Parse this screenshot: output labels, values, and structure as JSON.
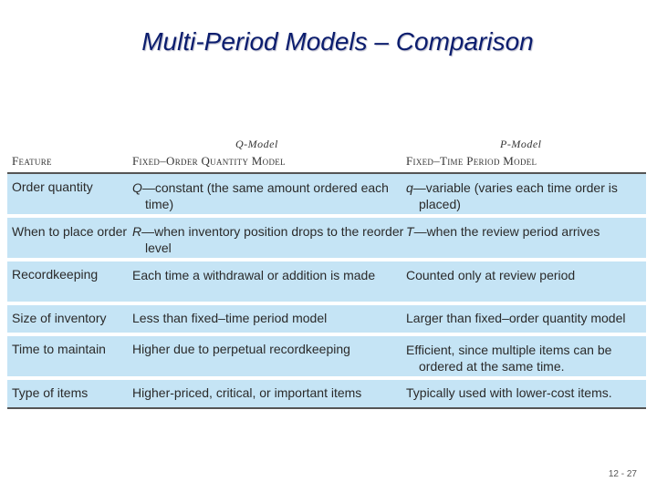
{
  "title": "Multi-Period Models – Comparison",
  "table": {
    "q_model_heading": "Q-Model",
    "p_model_heading": "P-Model",
    "columns": [
      "Feature",
      "Fixed–Order Quantity Model",
      "Fixed–Time Period Model"
    ],
    "rows": [
      {
        "feature": "Order quantity",
        "q_sym": "Q",
        "q_text": "—constant (the same amount ordered each time)",
        "p_sym": "q",
        "p_text": "—variable (varies each time order is placed)"
      },
      {
        "feature": "When to place order",
        "q_sym": "R",
        "q_text": "—when inventory position drops to the reorder level",
        "p_sym": "T",
        "p_text": "—when the review period arrives"
      },
      {
        "feature": "Recordkeeping",
        "q_sym": "",
        "q_text": "Each time a withdrawal or addition is made",
        "p_sym": "",
        "p_text": "Counted only at review period"
      },
      {
        "feature": "Size of inventory",
        "q_sym": "",
        "q_text": "Less than fixed–time period model",
        "p_sym": "",
        "p_text": "Larger than fixed–order quantity model"
      },
      {
        "feature": "Time to maintain",
        "q_sym": "",
        "q_text": "Higher due to perpetual recordkeeping",
        "p_sym": "",
        "p_text": "Efficient, since multiple items can be ordered at the same time."
      },
      {
        "feature": "Type of items",
        "q_sym": "",
        "q_text": "Higher-priced, critical, or important items",
        "p_sym": "",
        "p_text": "Typically used with lower-cost items."
      }
    ]
  },
  "page_number": "12 - 27"
}
